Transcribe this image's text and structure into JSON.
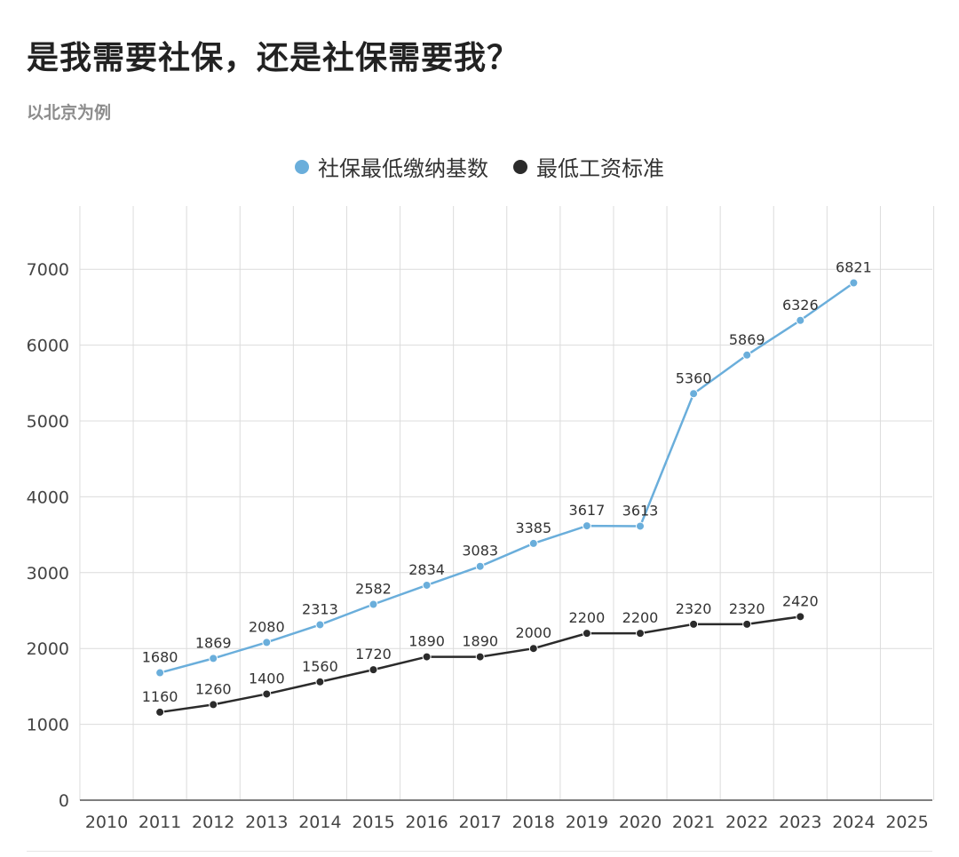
{
  "header": {
    "title": "是我需要社保，还是社保需要我？",
    "subtitle": "以北京为例"
  },
  "chart_data": {
    "type": "line",
    "x": [
      2010,
      2011,
      2012,
      2013,
      2014,
      2015,
      2016,
      2017,
      2018,
      2019,
      2020,
      2021,
      2022,
      2023,
      2024,
      2025
    ],
    "xlim": [
      2010,
      2025
    ],
    "ylim": [
      0,
      7000
    ],
    "yticks": [
      0,
      1000,
      2000,
      3000,
      4000,
      5000,
      6000,
      7000
    ],
    "grid": true,
    "legend_position": "top-center",
    "series": [
      {
        "name": "社保最低缴纳基数",
        "color": "#6aaedb",
        "points": [
          [
            2011,
            1680
          ],
          [
            2012,
            1869
          ],
          [
            2013,
            2080
          ],
          [
            2014,
            2313
          ],
          [
            2015,
            2582
          ],
          [
            2016,
            2834
          ],
          [
            2017,
            3083
          ],
          [
            2018,
            3385
          ],
          [
            2019,
            3617
          ],
          [
            2020,
            3613
          ],
          [
            2021,
            5360
          ],
          [
            2022,
            5869
          ],
          [
            2023,
            6326
          ],
          [
            2024,
            6821
          ]
        ]
      },
      {
        "name": "最低工资标准",
        "color": "#2b2b2b",
        "points": [
          [
            2011,
            1160
          ],
          [
            2012,
            1260
          ],
          [
            2013,
            1400
          ],
          [
            2014,
            1560
          ],
          [
            2015,
            1720
          ],
          [
            2016,
            1890
          ],
          [
            2017,
            1890
          ],
          [
            2018,
            2000
          ],
          [
            2019,
            2200
          ],
          [
            2020,
            2200
          ],
          [
            2021,
            2320
          ],
          [
            2022,
            2320
          ],
          [
            2023,
            2420
          ]
        ]
      }
    ]
  }
}
